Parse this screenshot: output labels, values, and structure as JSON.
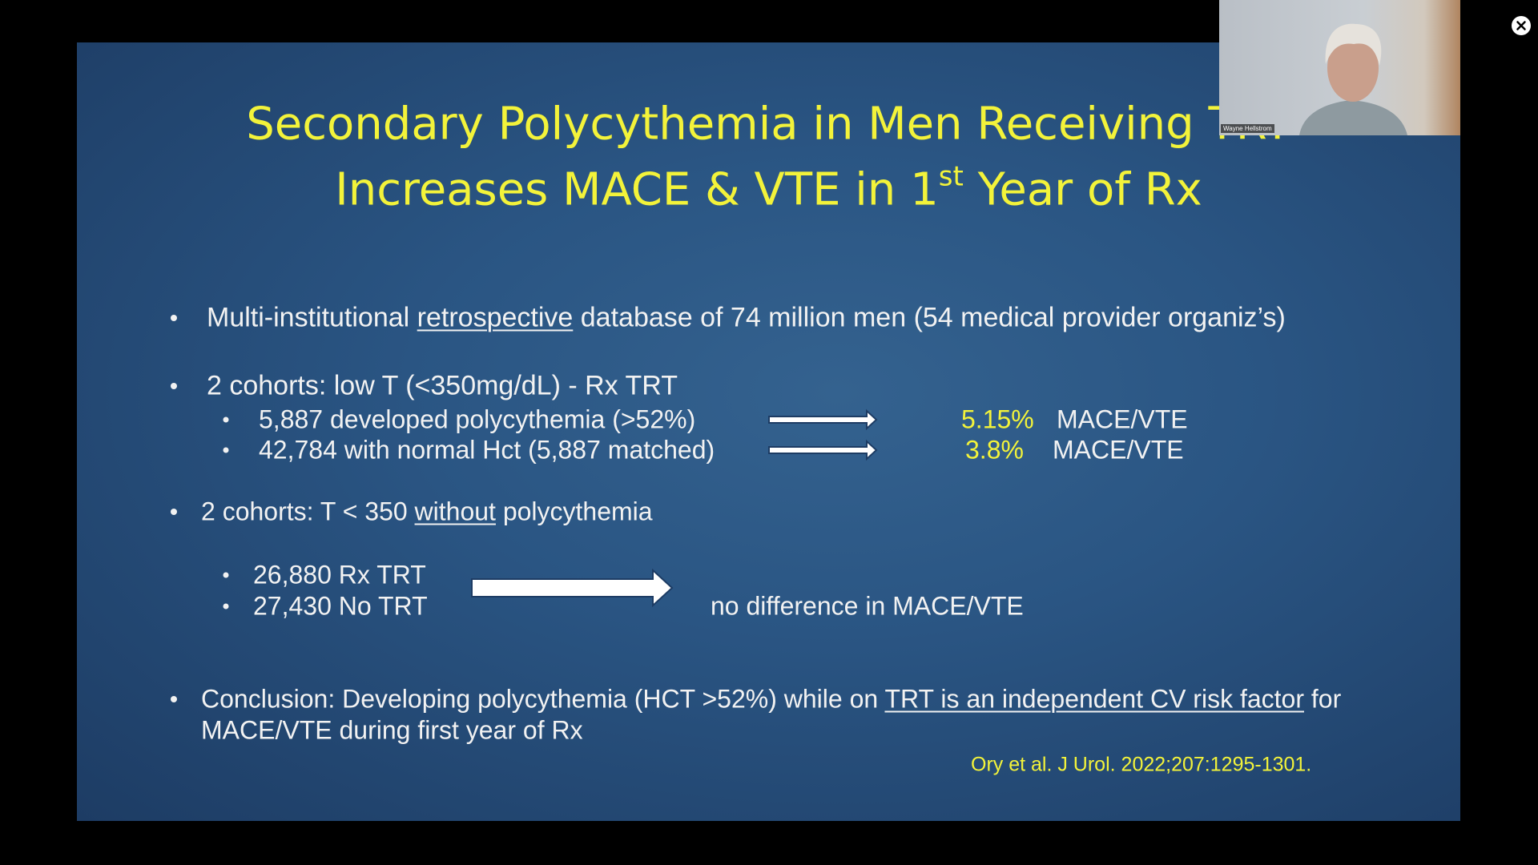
{
  "slide": {
    "title": {
      "line1": "Secondary Polycythemia in Men Receiving TRT",
      "line2_before": "Increases MACE & VTE in 1",
      "line2_sup": "st",
      "line2_after": "Year of Rx"
    },
    "bullets": [
      {
        "segments": [
          "Multi-institutional",
          "retrospective",
          "database of 74 million men (54 medical provider organiz’s)"
        ]
      },
      {
        "text": "2 cohorts: low T (<350mg/dL) - Rx TRT",
        "sub": [
          {
            "text": "5,887 developed polycythemia (>52%)",
            "rate": "5.15%",
            "outcome": "MACE/VTE"
          },
          {
            "text": "42,784 with normal Hct (5,887 matched)",
            "rate": "3.8%",
            "outcome": "MACE/VTE"
          }
        ]
      },
      {
        "segments": [
          "2 cohorts: T < 350",
          "without",
          "polycythemia"
        ],
        "sub": [
          "26,880 Rx TRT",
          "27,430 No TRT"
        ],
        "result": "no difference in MACE/VTE"
      },
      {
        "segments": [
          "Conclusion: Developing polycythemia (HCT >52%) while on",
          "TRT is an independent CV risk factor",
          "for"
        ],
        "line2": "MACE/VTE during first year of Rx"
      }
    ],
    "citation": "Ory et al. J Urol. 2022;207:1295-1301."
  },
  "video_tile": {
    "participant": "Wayne Hellstrom"
  }
}
